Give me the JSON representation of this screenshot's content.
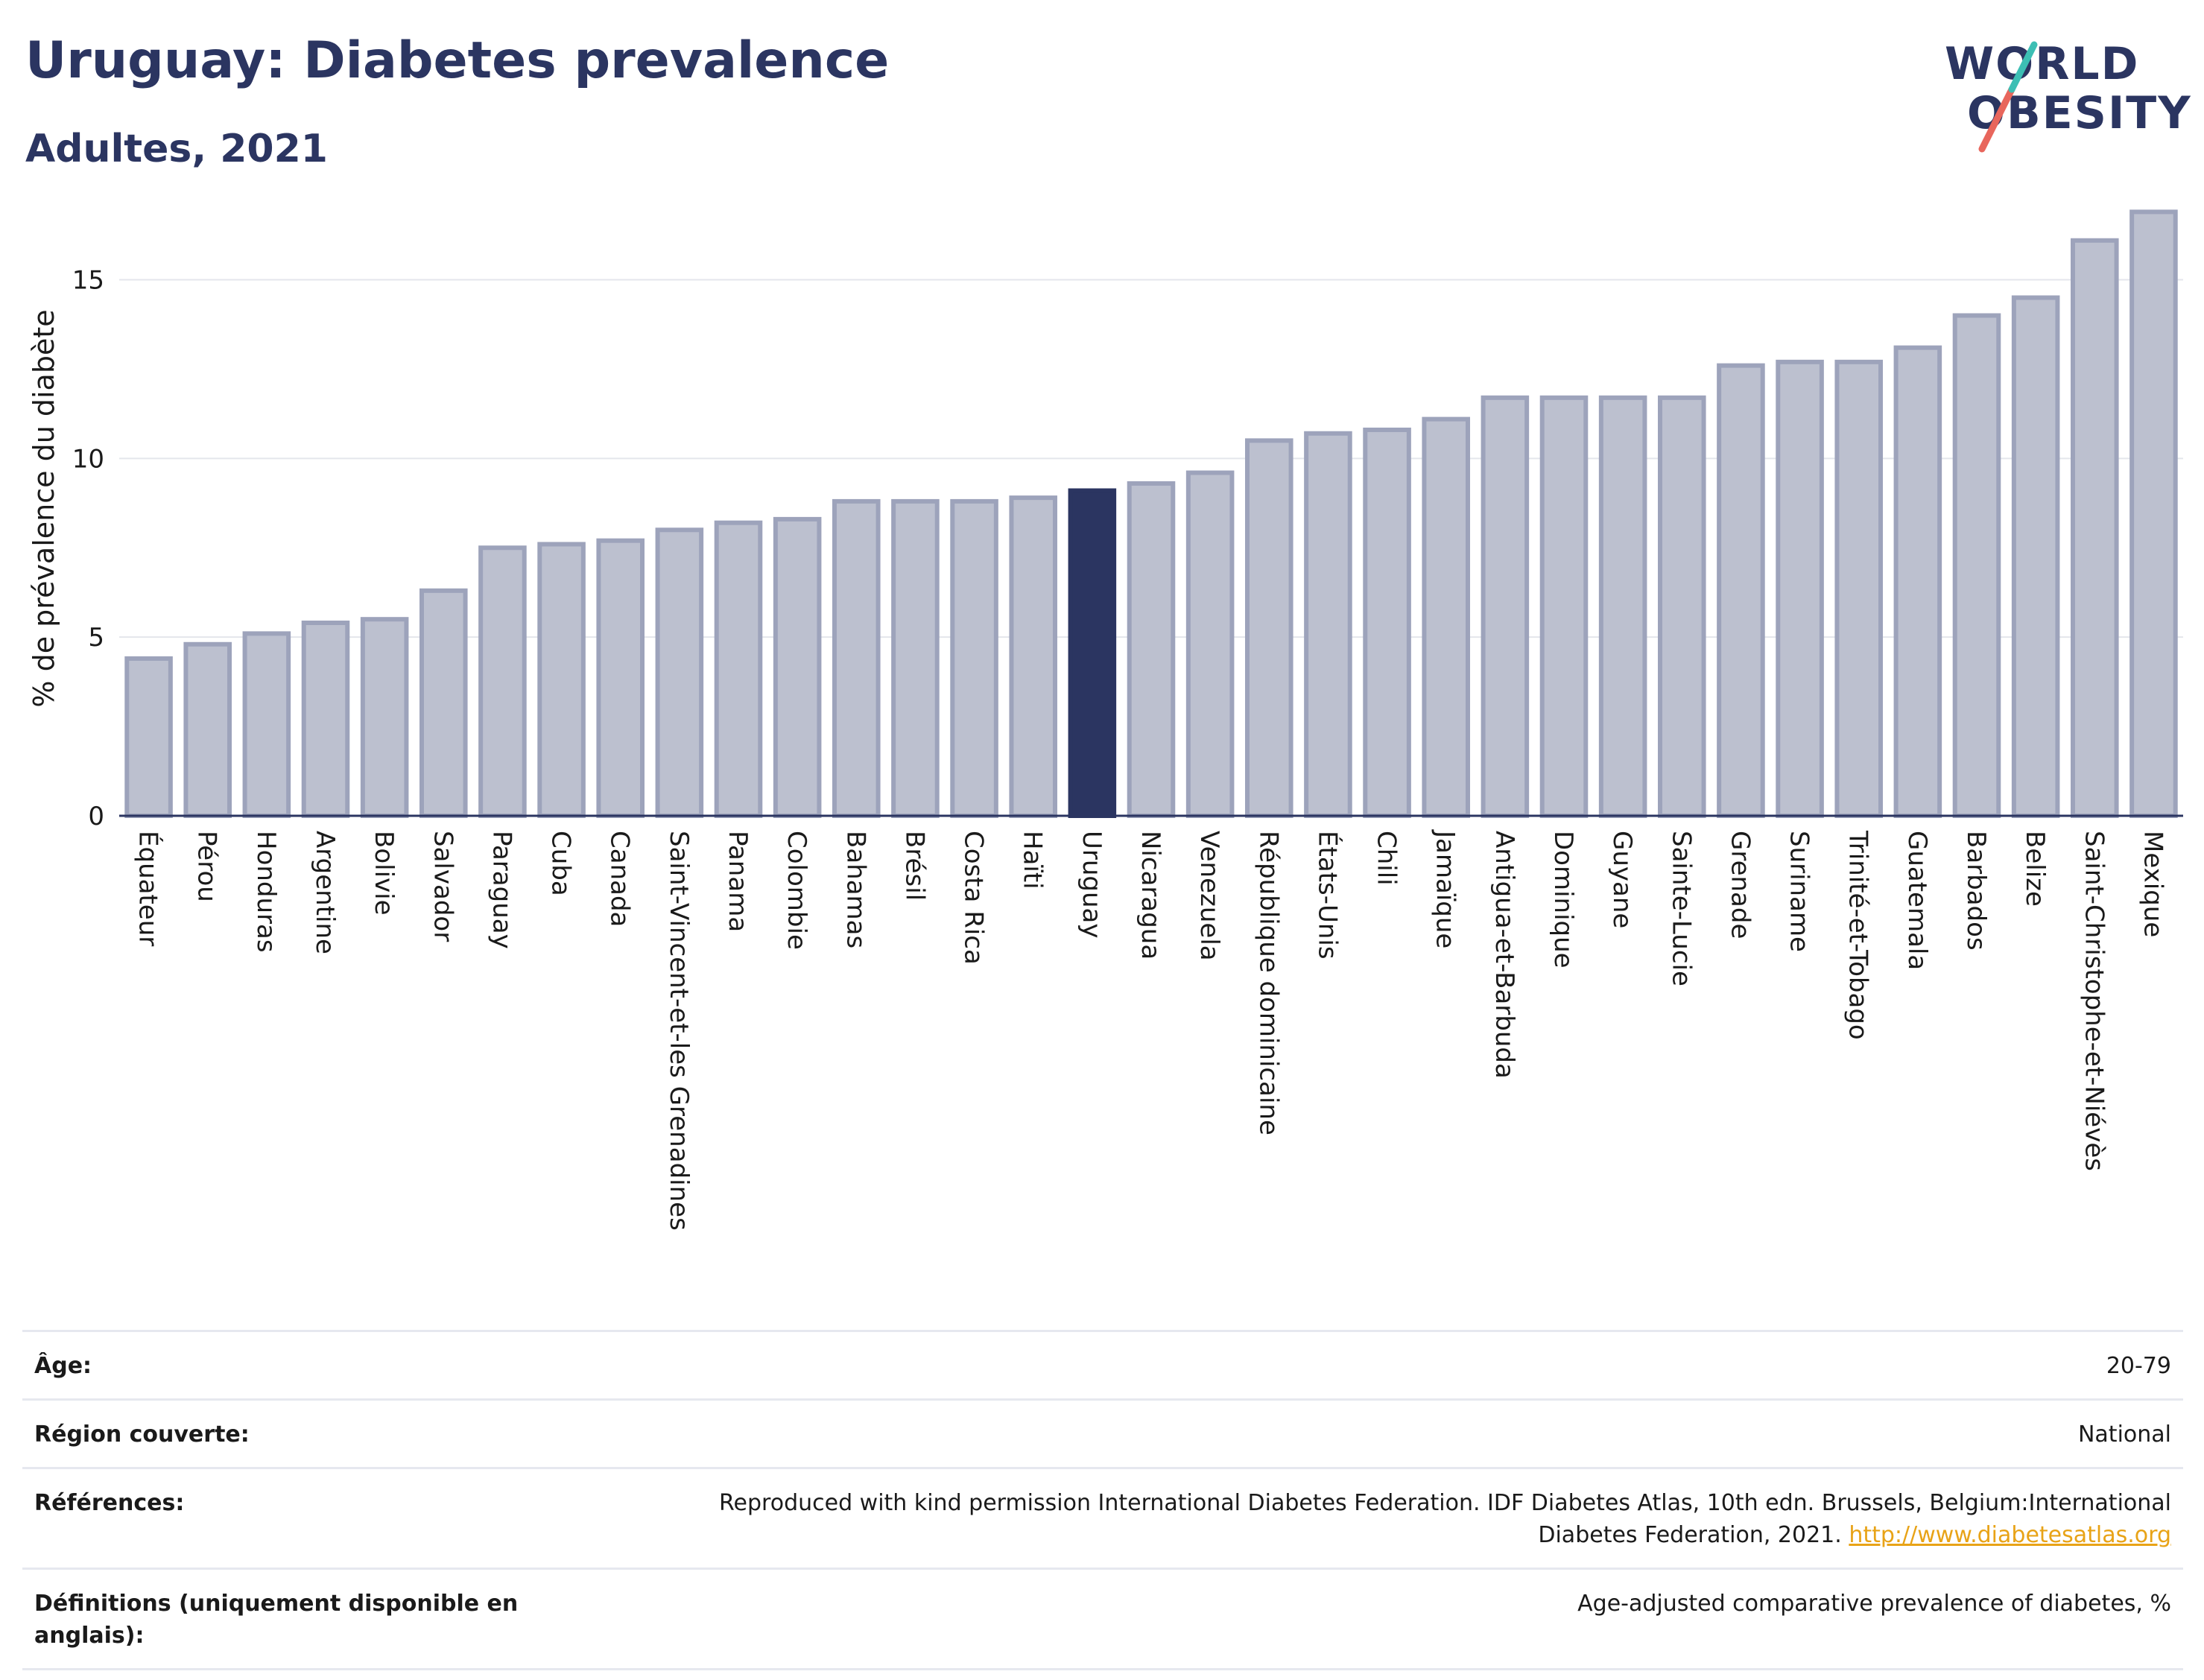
{
  "header": {
    "title": "Uruguay: Diabetes prevalence",
    "subtitle": "Adultes, 2021"
  },
  "logo": {
    "line1": "WORLD",
    "line2": "OBESITY"
  },
  "colors": {
    "bar": "#bcc0cf",
    "bar_border": "#9da3bb",
    "highlight": "#2b3561",
    "accent_teal": "#3cbfb4",
    "accent_red": "#e8665c"
  },
  "chart_data": {
    "type": "bar",
    "title": "Uruguay: Diabetes prevalence",
    "subtitle": "Adultes, 2021",
    "ylabel": "% de prévalence du diabète",
    "xlabel": "",
    "ylim": [
      0,
      17.2
    ],
    "yticks": [
      0,
      5,
      10,
      15
    ],
    "grid": true,
    "highlight": "Uruguay",
    "categories": [
      "Équateur",
      "Pérou",
      "Honduras",
      "Argentine",
      "Bolivie",
      "Salvador",
      "Paraguay",
      "Cuba",
      "Canada",
      "Saint-Vincent-et-les Grenadines",
      "Panama",
      "Colombie",
      "Bahamas",
      "Brésil",
      "Costa Rica",
      "Haïti",
      "Uruguay",
      "Nicaragua",
      "Venezuela",
      "République dominicaine",
      "États-Unis",
      "Chili",
      "Jamaïque",
      "Antigua-et-Barbuda",
      "Dominique",
      "Guyane",
      "Sainte-Lucie",
      "Grenade",
      "Suriname",
      "Trinité-et-Tobago",
      "Guatemala",
      "Barbados",
      "Belize",
      "Saint-Christophe-et-Niévès",
      "Mexique"
    ],
    "values": [
      4.4,
      4.8,
      5.1,
      5.4,
      5.5,
      6.3,
      7.5,
      7.6,
      7.7,
      8.0,
      8.2,
      8.3,
      8.8,
      8.8,
      8.8,
      8.9,
      9.1,
      9.3,
      9.6,
      10.5,
      10.7,
      10.8,
      11.1,
      11.7,
      11.7,
      11.7,
      11.7,
      12.6,
      12.7,
      12.7,
      13.1,
      14.0,
      14.5,
      16.1,
      16.9
    ]
  },
  "meta": [
    {
      "label": "Âge:",
      "value": "20-79"
    },
    {
      "label": "Région couverte:",
      "value": "National"
    },
    {
      "label": "Références:",
      "value": "Reproduced with kind permission International Diabetes Federation.  IDF Diabetes Atlas, 10th edn. Brussels, Belgium:International Diabetes Federation, 2021.",
      "link": "http://www.diabetesatlas.org"
    },
    {
      "label": "Définitions (uniquement disponible en anglais):",
      "value": "Age-adjusted comparative prevalence of diabetes, %"
    }
  ]
}
